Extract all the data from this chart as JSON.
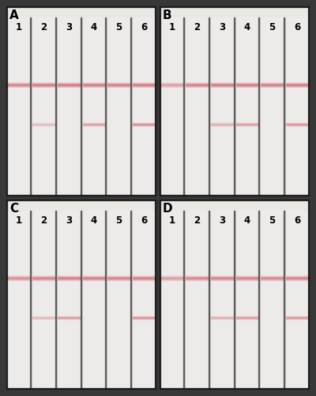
{
  "fig_w": 4.0,
  "fig_h": 5.0,
  "dpi": 100,
  "outer_bg": "#3a3a3a",
  "panel_bg": [
    200,
    197,
    193
  ],
  "strip_bg": [
    235,
    232,
    228
  ],
  "divider_color": [
    80,
    80,
    80
  ],
  "border_color": [
    25,
    25,
    25
  ],
  "line_pink_strong": [
    200,
    100,
    110
  ],
  "line_pink_medium": [
    215,
    130,
    138
  ],
  "line_pink_weak": [
    228,
    160,
    165
  ],
  "label_color": [
    10,
    10,
    10
  ],
  "panels": [
    {
      "label": "A",
      "ctrl_intensity": [
        0.82,
        0.88,
        0.9,
        0.88,
        0.85,
        0.88
      ],
      "test_intensity": [
        0.0,
        0.4,
        0.0,
        0.65,
        0.0,
        0.78
      ]
    },
    {
      "label": "B",
      "ctrl_intensity": [
        0.6,
        0.85,
        0.87,
        0.87,
        0.85,
        0.87
      ],
      "test_intensity": [
        0.0,
        0.0,
        0.5,
        0.65,
        0.0,
        0.72
      ]
    },
    {
      "label": "C",
      "ctrl_intensity": [
        0.75,
        0.85,
        0.88,
        0.88,
        0.85,
        0.88
      ],
      "test_intensity": [
        0.0,
        0.42,
        0.65,
        0.0,
        0.0,
        0.72
      ]
    },
    {
      "label": "D",
      "ctrl_intensity": [
        0.65,
        0.82,
        0.85,
        0.85,
        0.82,
        0.85
      ],
      "test_intensity": [
        0.0,
        0.0,
        0.5,
        0.65,
        0.0,
        0.68
      ]
    }
  ]
}
